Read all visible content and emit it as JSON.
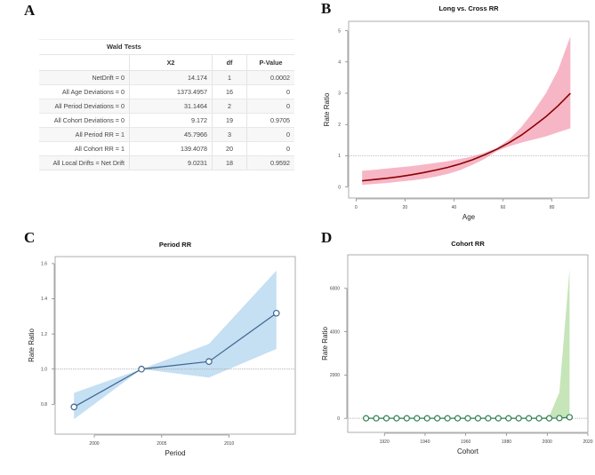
{
  "panels": {
    "a_letter": "A",
    "b_letter": "B",
    "c_letter": "C",
    "d_letter": "D"
  },
  "wald_table": {
    "caption": "Wald Tests",
    "headers": [
      "",
      "X2",
      "df",
      "P-Value"
    ],
    "rows": [
      {
        "label": "NetDrift = 0",
        "x2": "14.174",
        "df": "1",
        "p": "0.0002"
      },
      {
        "label": "All Age Deviations = 0",
        "x2": "1373.4957",
        "df": "16",
        "p": "0"
      },
      {
        "label": "All Period Deviations = 0",
        "x2": "31.1464",
        "df": "2",
        "p": "0"
      },
      {
        "label": "All Cohort Deviations = 0",
        "x2": "9.172",
        "df": "19",
        "p": "0.9705"
      },
      {
        "label": "All Period RR = 1",
        "x2": "45.7966",
        "df": "3",
        "p": "0"
      },
      {
        "label": "All Cohort RR = 1",
        "x2": "139.4078",
        "df": "20",
        "p": "0"
      },
      {
        "label": "All Local Drifts = Net Drift",
        "x2": "9.0231",
        "df": "18",
        "p": "0.9592"
      }
    ]
  },
  "chart_data": [
    {
      "id": "B",
      "type": "line",
      "title": "Long vs. Cross RR",
      "xlabel": "Age",
      "ylabel": "Rate Ratio",
      "xlim": [
        -3,
        95
      ],
      "ylim": [
        -0.35,
        5.3
      ],
      "xticks": [
        0,
        20,
        40,
        60,
        80
      ],
      "yticks": [
        0,
        1,
        2,
        3,
        4,
        5
      ],
      "reference_line": 1,
      "line_color": "#8b0000",
      "band_color": "#f7b6c6",
      "x": [
        2.5,
        7.5,
        12.5,
        17.5,
        22.5,
        27.5,
        32.5,
        37.5,
        42.5,
        47.5,
        52.5,
        57.5,
        62.5,
        67.5,
        72.5,
        77.5,
        82.5,
        87.5
      ],
      "series": [
        {
          "name": "fit",
          "values": [
            0.2,
            0.24,
            0.28,
            0.33,
            0.39,
            0.46,
            0.54,
            0.63,
            0.74,
            0.87,
            1.03,
            1.21,
            1.42,
            1.66,
            1.95,
            2.25,
            2.6,
            3.0
          ]
        },
        {
          "name": "lower",
          "values": [
            0.07,
            0.1,
            0.13,
            0.17,
            0.21,
            0.26,
            0.33,
            0.42,
            0.54,
            0.71,
            0.9,
            1.15,
            1.3,
            1.42,
            1.52,
            1.62,
            1.75,
            1.88
          ]
        },
        {
          "name": "upper",
          "values": [
            0.52,
            0.55,
            0.59,
            0.63,
            0.67,
            0.72,
            0.77,
            0.83,
            0.9,
            0.98,
            1.1,
            1.25,
            1.52,
            1.92,
            2.42,
            3.0,
            3.75,
            4.82
          ]
        }
      ]
    },
    {
      "id": "C",
      "type": "line",
      "title": "Period RR",
      "xlabel": "Period",
      "ylabel": "Rate Ratio",
      "xlim": [
        1997.1,
        2014.9
      ],
      "ylim": [
        0.63,
        1.64
      ],
      "xticks": [
        2000,
        2005,
        2010
      ],
      "yticks": [
        0.8,
        1.0,
        1.2,
        1.4,
        1.6
      ],
      "ytick_labels": [
        "0.8",
        "1.0",
        "1.2",
        "1.4",
        "1.6"
      ],
      "reference_line": 1,
      "line_color": "#3b6591",
      "band_color": "#c5dff3",
      "x": [
        1998.5,
        2003.5,
        2008.5,
        2013.5
      ],
      "series": [
        {
          "name": "fit",
          "values": [
            0.785,
            1.0,
            1.043,
            1.318
          ]
        },
        {
          "name": "lower",
          "values": [
            0.715,
            1.0,
            0.952,
            1.115
          ]
        },
        {
          "name": "upper",
          "values": [
            0.865,
            1.0,
            1.143,
            1.56
          ]
        }
      ]
    },
    {
      "id": "D",
      "type": "line",
      "title": "Cohort RR",
      "xlabel": "Cohort",
      "ylabel": "Rate Ratio",
      "xlim": [
        1902,
        2020
      ],
      "ylim": [
        -650,
        7550
      ],
      "xticks": [
        1920,
        1940,
        1960,
        1980,
        2000,
        2020
      ],
      "yticks": [
        0,
        2000,
        4000,
        6000
      ],
      "reference_line": 1,
      "line_color": "#2e7d4f",
      "band_color": "#c6e5b9",
      "x": [
        1911,
        1916,
        1921,
        1926,
        1931,
        1936,
        1941,
        1946,
        1951,
        1956,
        1961,
        1966,
        1971,
        1976,
        1981,
        1986,
        1991,
        1996,
        2001,
        2006,
        2011
      ],
      "series": [
        {
          "name": "fit",
          "values": [
            1,
            1,
            1,
            1,
            1,
            1,
            1,
            1,
            1,
            1,
            1,
            1,
            1,
            1,
            1,
            1,
            1,
            1,
            1,
            8,
            50
          ]
        },
        {
          "name": "lower",
          "values": [
            0,
            0,
            0,
            0,
            0,
            0,
            0,
            0,
            0,
            0,
            0,
            0,
            0,
            0,
            0,
            0,
            0,
            0,
            0,
            0,
            0
          ]
        },
        {
          "name": "upper",
          "values": [
            2,
            2,
            2,
            2,
            2,
            2,
            2,
            2,
            2,
            2,
            2,
            2,
            2,
            2,
            2,
            2,
            2,
            2,
            80,
            1200,
            6900
          ]
        }
      ]
    }
  ]
}
